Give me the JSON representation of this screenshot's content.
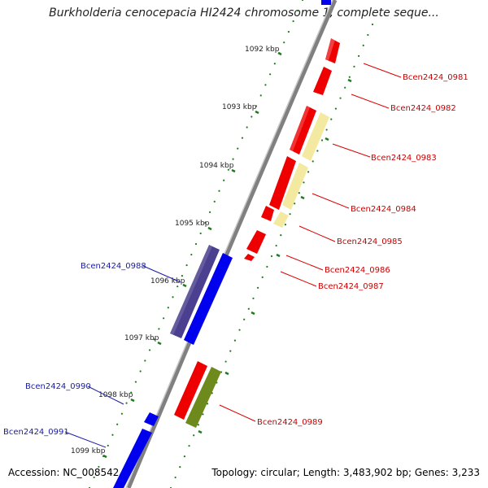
{
  "title": "Burkholderia cenocepacia HI2424 chromosome 1, complete seque...",
  "accession": "Accession: NC_008542",
  "topology": "Topology: circular; Length: 3,483,902 bp; Genes: 3,233",
  "ticks": [
    {
      "label": "1092 kbp"
    },
    {
      "label": "1093 kbp"
    },
    {
      "label": "1094 kbp"
    },
    {
      "label": "1095 kbp"
    },
    {
      "label": "1096 kbp"
    },
    {
      "label": "1097 kbp"
    },
    {
      "label": "1098 kbp"
    },
    {
      "label": "1099 kbp"
    }
  ],
  "genes": [
    {
      "name": "Bcen2424_0981",
      "strand": "forward",
      "color": "#ee0000"
    },
    {
      "name": "Bcen2424_0982",
      "strand": "forward",
      "color": "#ee0000"
    },
    {
      "name": "Bcen2424_0983",
      "strand": "forward",
      "color": "#ee0000"
    },
    {
      "name": "Bcen2424_0984",
      "strand": "forward",
      "color": "#ee0000"
    },
    {
      "name": "Bcen2424_0985",
      "strand": "forward",
      "color": "#ee0000"
    },
    {
      "name": "Bcen2424_0986",
      "strand": "forward",
      "color": "#ee0000"
    },
    {
      "name": "Bcen2424_0987",
      "strand": "forward",
      "color": "#ee0000"
    },
    {
      "name": "Bcen2424_0988",
      "strand": "reverse",
      "color": "#0000ee"
    },
    {
      "name": "Bcen2424_0989",
      "strand": "forward",
      "color": "#ee0000"
    },
    {
      "name": "Bcen2424_0990",
      "strand": "reverse",
      "color": "#0000ee"
    },
    {
      "name": "Bcen2424_0991",
      "strand": "reverse",
      "color": "#0000ee"
    }
  ],
  "colors": {
    "forward": "#ee0000",
    "reverse": "#0000ee",
    "feature_yellow": "#f4e9a0",
    "feature_purple": "#4b3f8f",
    "feature_olive": "#6e8a1c",
    "tick_green": "#1e7a1e",
    "backbone": "#808080"
  }
}
